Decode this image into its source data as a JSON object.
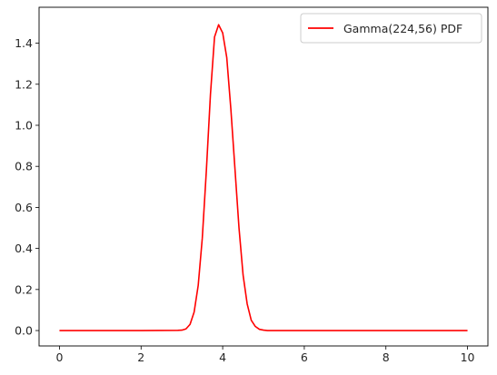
{
  "chart_data": {
    "type": "line",
    "title": "",
    "xlabel": "",
    "ylabel": "",
    "xlim": [
      -0.5,
      10.5
    ],
    "ylim": [
      -0.075,
      1.575
    ],
    "grid": false,
    "legend_position": "top-right",
    "x_ticks": [
      0,
      2,
      4,
      6,
      8,
      10
    ],
    "x_tick_labels": [
      "0",
      "2",
      "4",
      "6",
      "8",
      "10"
    ],
    "y_ticks": [
      0.0,
      0.2,
      0.4,
      0.6,
      0.8,
      1.0,
      1.2,
      1.4
    ],
    "y_tick_labels": [
      "0.0",
      "0.2",
      "0.4",
      "0.6",
      "0.8",
      "1.0",
      "1.2",
      "1.4"
    ],
    "series": [
      {
        "name": "Gamma(224,56) PDF",
        "color": "#ff0000",
        "x": [
          0.0,
          1.0,
          2.0,
          2.9,
          3.0,
          3.1,
          3.2,
          3.3,
          3.4,
          3.5,
          3.6,
          3.7,
          3.8,
          3.9,
          4.0,
          4.1,
          4.2,
          4.3,
          4.4,
          4.5,
          4.6,
          4.7,
          4.8,
          4.9,
          5.0,
          5.1,
          5.2,
          5.4,
          6.0,
          7.0,
          8.0,
          9.0,
          10.0
        ],
        "y": [
          0.0,
          0.0,
          0.0,
          0.001,
          0.002,
          0.008,
          0.03,
          0.09,
          0.22,
          0.45,
          0.78,
          1.15,
          1.43,
          1.49,
          1.45,
          1.33,
          1.08,
          0.79,
          0.5,
          0.27,
          0.13,
          0.05,
          0.02,
          0.006,
          0.002,
          0.0,
          0.0,
          0.0,
          0.0,
          0.0,
          0.0,
          0.0,
          0.0
        ]
      }
    ]
  }
}
